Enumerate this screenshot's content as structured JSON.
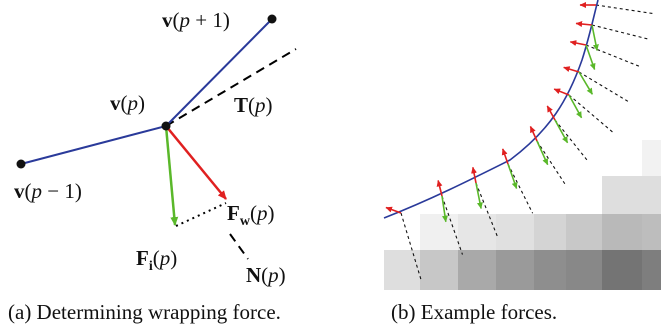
{
  "panel_a": {
    "caption": "(a) Determining wrapping force.",
    "labels": {
      "v_next": {
        "bold": "v",
        "open": "(",
        "var": "p",
        "rest": " + 1)"
      },
      "v_curr": {
        "bold": "v",
        "open": "(",
        "var": "p",
        "rest": ")"
      },
      "v_prev": {
        "bold": "v",
        "open": "(",
        "var": "p",
        "rest": " − 1)"
      },
      "tangent": {
        "bold": "T",
        "open": "(",
        "var": "p",
        "rest": ")"
      },
      "normal": {
        "bold": "N",
        "open": "(",
        "var": "p",
        "rest": ")"
      },
      "f_wrap": {
        "bold": "F",
        "sub": "w",
        "open": "(",
        "var": "p",
        "rest": ")"
      },
      "f_int": {
        "bold": "F",
        "sub": "i",
        "open": "(",
        "var": "p",
        "rest": ")"
      }
    }
  },
  "panel_b": {
    "caption": "(b) Example forces."
  },
  "colors": {
    "curve": "#2a3a9a",
    "wrap_force": "#e02020",
    "internal_force": "#5ab82a",
    "guide": "#000000"
  }
}
